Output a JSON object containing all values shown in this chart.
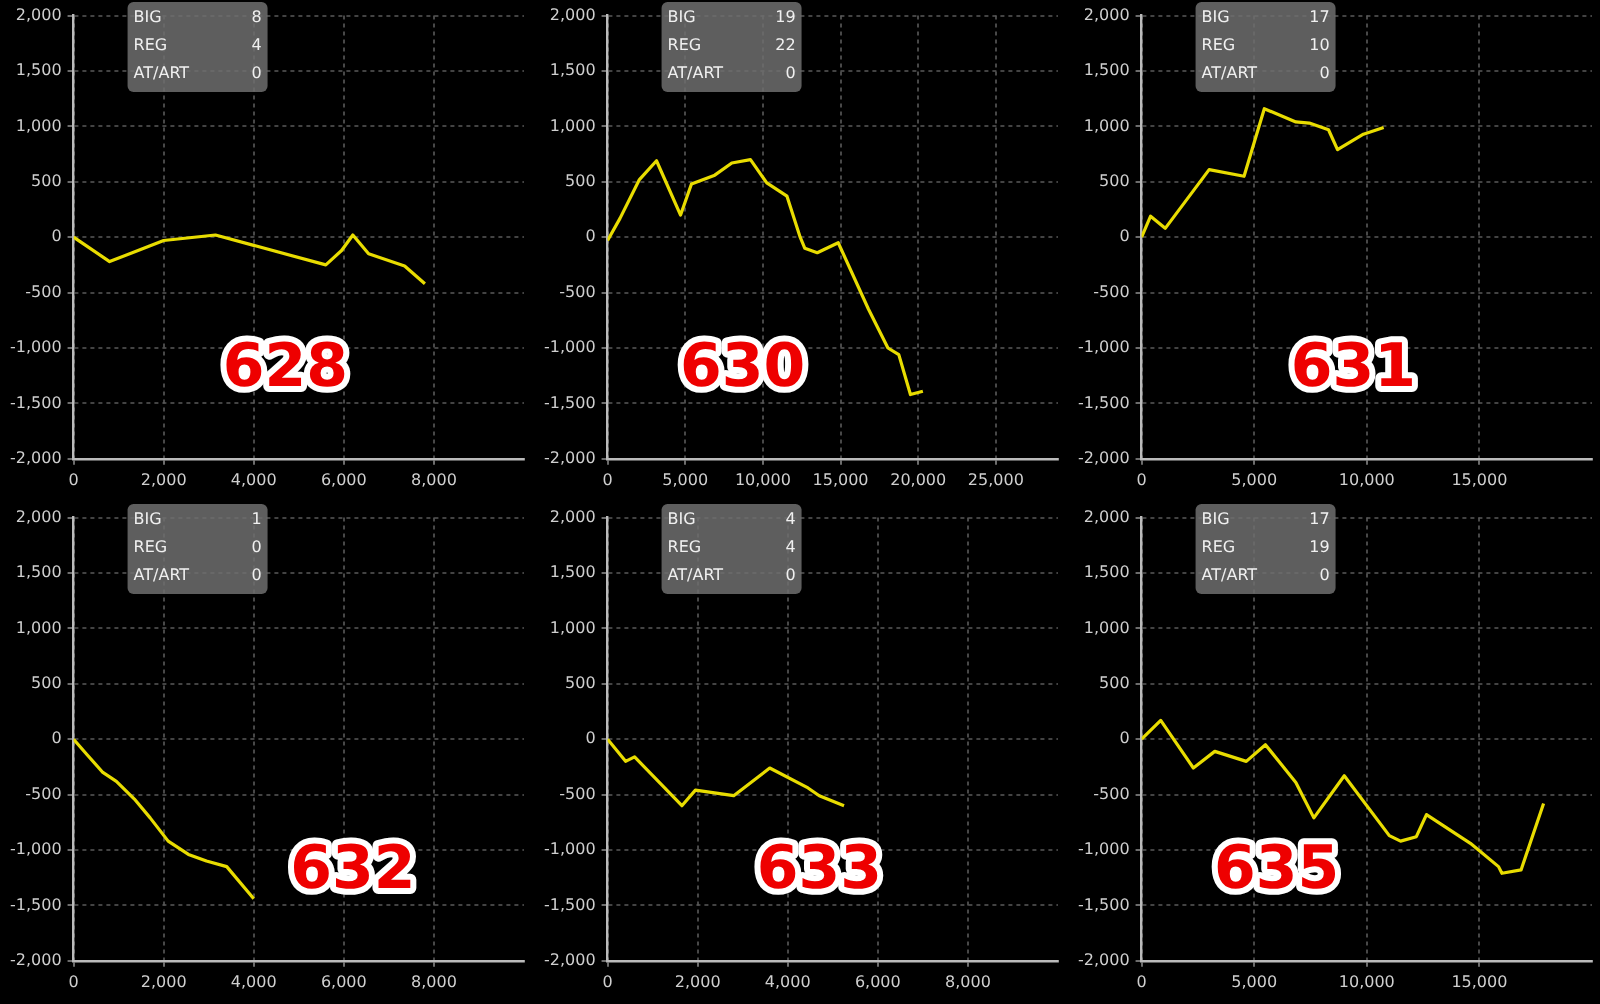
{
  "chart_data": [
    {
      "type": "line",
      "xlim": [
        0,
        10000
      ],
      "xticks": [
        {
          "value": 0,
          "label": "0"
        },
        {
          "value": 2000,
          "label": "2,000"
        },
        {
          "value": 4000,
          "label": "4,000"
        },
        {
          "value": 6000,
          "label": "6,000"
        },
        {
          "value": 8000,
          "label": "8,000"
        }
      ],
      "ylim": [
        -2000,
        2000
      ],
      "yticks": [
        {
          "value": -2000,
          "label": "-2,000"
        },
        {
          "value": -1500,
          "label": "-1,500"
        },
        {
          "value": -1000,
          "label": "-1,000"
        },
        -500,
        0,
        500,
        {
          "value": 1000,
          "label": "1,000"
        },
        {
          "value": 1500,
          "label": "1,500"
        },
        {
          "value": 2000,
          "label": "2,000"
        }
      ],
      "grid": true,
      "marker": "none",
      "legend": false,
      "annotations": [
        "628",
        "BIG",
        "8",
        "REG",
        "4",
        "AT/ART",
        "0"
      ],
      "series": [
        {
          "color": "#e8dc00",
          "x": [
            0,
            800,
            2000,
            3150,
            5600,
            5950,
            6200,
            6550,
            7350,
            7800
          ],
          "values": [
            0,
            -220,
            -30,
            20,
            -250,
            -120,
            20,
            -150,
            -260,
            -420
          ]
        }
      ]
    },
    {
      "type": "line",
      "xlim": [
        0,
        29000
      ],
      "xticks": [
        {
          "value": 0,
          "label": "0"
        },
        {
          "value": 5000,
          "label": "5,000"
        },
        {
          "value": 10000,
          "label": "10,000"
        },
        {
          "value": 15000,
          "label": "15,000"
        },
        {
          "value": 20000,
          "label": "20,000"
        },
        {
          "value": 25000,
          "label": "25,000"
        }
      ],
      "ylim": [
        -2000,
        2000
      ],
      "yticks": [
        {
          "value": -2000,
          "label": "-2,000"
        },
        {
          "value": -1500,
          "label": "-1,500"
        },
        {
          "value": -1000,
          "label": "-1,000"
        },
        -500,
        0,
        500,
        {
          "value": 1000,
          "label": "1,000"
        },
        {
          "value": 1500,
          "label": "1,500"
        },
        {
          "value": 2000,
          "label": "2,000"
        }
      ],
      "grid": true,
      "marker": "none",
      "legend": false,
      "annotations": [
        "630",
        "BIG",
        "19",
        "REG",
        "22",
        "AT/ART",
        "0"
      ],
      "series": [
        {
          "color": "#e8dc00",
          "x": [
            0,
            800,
            2050,
            3150,
            4700,
            5400,
            6900,
            8000,
            9200,
            10250,
            11550,
            12400,
            12700,
            13500,
            14850,
            16800,
            18050,
            18750,
            19500,
            20300
          ],
          "values": [
            -30,
            170,
            520,
            690,
            200,
            480,
            560,
            670,
            700,
            490,
            370,
            0,
            -100,
            -140,
            -50,
            -650,
            -1000,
            -1060,
            -1420,
            -1390
          ]
        }
      ]
    },
    {
      "type": "line",
      "xlim": [
        0,
        20000
      ],
      "xticks": [
        {
          "value": 0,
          "label": "0"
        },
        {
          "value": 5000,
          "label": "5,000"
        },
        {
          "value": 10000,
          "label": "10,000"
        },
        {
          "value": 15000,
          "label": "15,000"
        }
      ],
      "ylim": [
        -2000,
        2000
      ],
      "yticks": [
        {
          "value": -2000,
          "label": "-2,000"
        },
        {
          "value": -1500,
          "label": "-1,500"
        },
        {
          "value": -1000,
          "label": "-1,000"
        },
        -500,
        0,
        500,
        {
          "value": 1000,
          "label": "1,000"
        },
        {
          "value": 1500,
          "label": "1,500"
        },
        {
          "value": 2000,
          "label": "2,000"
        }
      ],
      "grid": true,
      "marker": "none",
      "legend": false,
      "annotations": [
        "631",
        "BIG",
        "17",
        "REG",
        "10",
        "AT/ART",
        "0"
      ],
      "series": [
        {
          "color": "#e8dc00",
          "x": [
            0,
            400,
            1050,
            3000,
            4550,
            5450,
            6850,
            7450,
            8300,
            8700,
            9850,
            10750
          ],
          "values": [
            0,
            190,
            80,
            610,
            550,
            1160,
            1040,
            1030,
            970,
            790,
            930,
            990
          ]
        }
      ]
    },
    {
      "type": "line",
      "xlim": [
        0,
        10000
      ],
      "xticks": [
        {
          "value": 0,
          "label": "0"
        },
        {
          "value": 2000,
          "label": "2,000"
        },
        {
          "value": 4000,
          "label": "4,000"
        },
        {
          "value": 6000,
          "label": "6,000"
        },
        {
          "value": 8000,
          "label": "8,000"
        }
      ],
      "ylim": [
        -2000,
        2000
      ],
      "yticks": [
        {
          "value": -2000,
          "label": "-2,000"
        },
        {
          "value": -1500,
          "label": "-1,500"
        },
        {
          "value": -1000,
          "label": "-1,000"
        },
        -500,
        0,
        500,
        {
          "value": 1000,
          "label": "1,000"
        },
        {
          "value": 1500,
          "label": "1,500"
        },
        {
          "value": 2000,
          "label": "2,000"
        }
      ],
      "grid": true,
      "marker": "none",
      "legend": false,
      "annotations": [
        "632",
        "BIG",
        "1",
        "REG",
        "0",
        "AT/ART",
        "0"
      ],
      "series": [
        {
          "color": "#e8dc00",
          "x": [
            0,
            300,
            650,
            950,
            1350,
            1700,
            2100,
            2550,
            2950,
            3400,
            4000
          ],
          "values": [
            0,
            -140,
            -300,
            -380,
            -540,
            -710,
            -920,
            -1040,
            -1100,
            -1150,
            -1440
          ]
        }
      ]
    },
    {
      "type": "line",
      "xlim": [
        0,
        10000
      ],
      "xticks": [
        {
          "value": 0,
          "label": "0"
        },
        {
          "value": 2000,
          "label": "2,000"
        },
        {
          "value": 4000,
          "label": "4,000"
        },
        {
          "value": 6000,
          "label": "6,000"
        },
        {
          "value": 8000,
          "label": "8,000"
        }
      ],
      "ylim": [
        -2000,
        2000
      ],
      "yticks": [
        {
          "value": -2000,
          "label": "-2,000"
        },
        {
          "value": -1500,
          "label": "-1,500"
        },
        {
          "value": -1000,
          "label": "-1,000"
        },
        -500,
        0,
        500,
        {
          "value": 1000,
          "label": "1,000"
        },
        {
          "value": 1500,
          "label": "1,500"
        },
        {
          "value": 2000,
          "label": "2,000"
        }
      ],
      "grid": true,
      "marker": "none",
      "legend": false,
      "annotations": [
        "633",
        "BIG",
        "4",
        "REG",
        "4",
        "AT/ART",
        "0"
      ],
      "series": [
        {
          "color": "#e8dc00",
          "x": [
            0,
            400,
            600,
            1650,
            1950,
            2800,
            3600,
            4450,
            4700,
            5250
          ],
          "values": [
            0,
            -200,
            -160,
            -600,
            -460,
            -510,
            -260,
            -440,
            -510,
            -600
          ]
        }
      ]
    },
    {
      "type": "line",
      "xlim": [
        0,
        20000
      ],
      "xticks": [
        {
          "value": 0,
          "label": "0"
        },
        {
          "value": 5000,
          "label": "5,000"
        },
        {
          "value": 10000,
          "label": "10,000"
        },
        {
          "value": 15000,
          "label": "15,000"
        }
      ],
      "ylim": [
        -2000,
        2000
      ],
      "yticks": [
        {
          "value": -2000,
          "label": "-2,000"
        },
        {
          "value": -1500,
          "label": "-1,500"
        },
        {
          "value": -1000,
          "label": "-1,000"
        },
        -500,
        0,
        500,
        {
          "value": 1000,
          "label": "1,000"
        },
        {
          "value": 1500,
          "label": "1,500"
        },
        {
          "value": 2000,
          "label": "2,000"
        }
      ],
      "grid": true,
      "marker": "none",
      "legend": false,
      "annotations": [
        "635",
        "BIG",
        "17",
        "REG",
        "19",
        "AT/ART",
        "0"
      ],
      "series": [
        {
          "color": "#e8dc00",
          "x": [
            0,
            850,
            2300,
            3250,
            4650,
            5500,
            6850,
            7650,
            9000,
            11000,
            11500,
            12200,
            12650,
            14600,
            15850,
            16000,
            16850,
            17850
          ],
          "values": [
            0,
            170,
            -260,
            -110,
            -200,
            -50,
            -390,
            -710,
            -330,
            -870,
            -920,
            -880,
            -680,
            -940,
            -1150,
            -1210,
            -1180,
            -580
          ]
        }
      ]
    }
  ]
}
